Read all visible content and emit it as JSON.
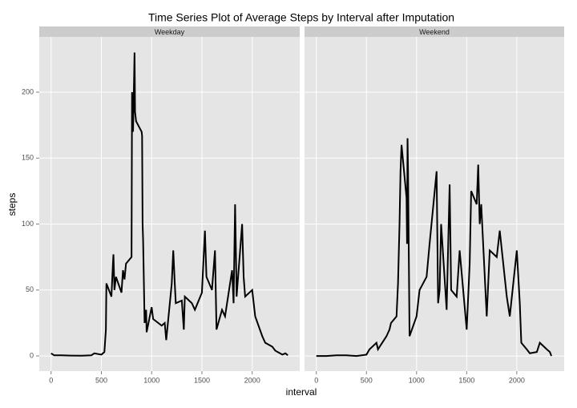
{
  "chart_data": {
    "type": "line",
    "title": "Time Series Plot of Average Steps by Interval after Imputation",
    "x_label": "interval",
    "y_label": "steps",
    "xlim": [
      -117.75,
      2472.75
    ],
    "xticks": [
      0,
      500,
      1000,
      1500,
      2000
    ],
    "ylim": [
      -11.5,
      241.9
    ],
    "yticks": [
      0,
      50,
      100,
      150,
      200
    ],
    "grid": true,
    "color": "#000000",
    "panels": [
      {
        "name": "Weekday",
        "x": [
          0,
          30,
          100,
          200,
          300,
          400,
          430,
          500,
          530,
          545,
          550,
          600,
          615,
          620,
          630,
          645,
          700,
          715,
          730,
          745,
          800,
          805,
          815,
          830,
          835,
          845,
          900,
          905,
          910,
          915,
          930,
          945,
          950,
          1000,
          1015,
          1100,
          1130,
          1145,
          1200,
          1215,
          1230,
          1240,
          1300,
          1320,
          1330,
          1400,
          1430,
          1500,
          1530,
          1545,
          1600,
          1630,
          1645,
          1700,
          1730,
          1800,
          1815,
          1830,
          1840,
          1845,
          1900,
          1915,
          1930,
          2000,
          2030,
          2100,
          2130,
          2200,
          2230,
          2300,
          2330,
          2355
        ],
        "values": [
          2,
          0.5,
          0.5,
          0.3,
          0.2,
          0.5,
          2,
          1,
          3,
          20,
          55,
          45,
          70,
          77,
          50,
          60,
          48,
          65,
          58,
          70,
          75,
          200,
          170,
          230,
          185,
          178,
          170,
          167,
          100,
          88,
          25,
          35,
          18,
          37,
          28,
          23,
          25,
          12,
          55,
          80,
          55,
          40,
          42,
          20,
          45,
          40,
          35,
          48,
          95,
          60,
          50,
          80,
          20,
          35,
          30,
          65,
          40,
          115,
          70,
          45,
          100,
          60,
          45,
          50,
          30,
          15,
          10,
          7,
          4,
          1,
          2,
          0.5
        ]
      },
      {
        "name": "Weekend",
        "x": [
          0,
          100,
          200,
          300,
          400,
          500,
          530,
          600,
          615,
          700,
          730,
          745,
          800,
          815,
          830,
          840,
          850,
          900,
          905,
          910,
          915,
          930,
          1000,
          1030,
          1100,
          1130,
          1200,
          1215,
          1230,
          1245,
          1300,
          1330,
          1345,
          1400,
          1430,
          1500,
          1530,
          1545,
          1600,
          1615,
          1630,
          1645,
          1700,
          1730,
          1800,
          1830,
          1900,
          1930,
          2000,
          2030,
          2045,
          2100,
          2130,
          2200,
          2230,
          2300,
          2330,
          2345
        ],
        "values": [
          0,
          0,
          0.5,
          0.5,
          0,
          1,
          5,
          10,
          5,
          15,
          20,
          25,
          30,
          55,
          100,
          140,
          160,
          120,
          85,
          165,
          140,
          15,
          30,
          50,
          60,
          85,
          140,
          40,
          50,
          100,
          35,
          130,
          50,
          45,
          80,
          20,
          70,
          125,
          115,
          145,
          100,
          115,
          30,
          80,
          75,
          95,
          45,
          30,
          80,
          40,
          10,
          5,
          2,
          3,
          10,
          5,
          3,
          0
        ]
      }
    ]
  }
}
